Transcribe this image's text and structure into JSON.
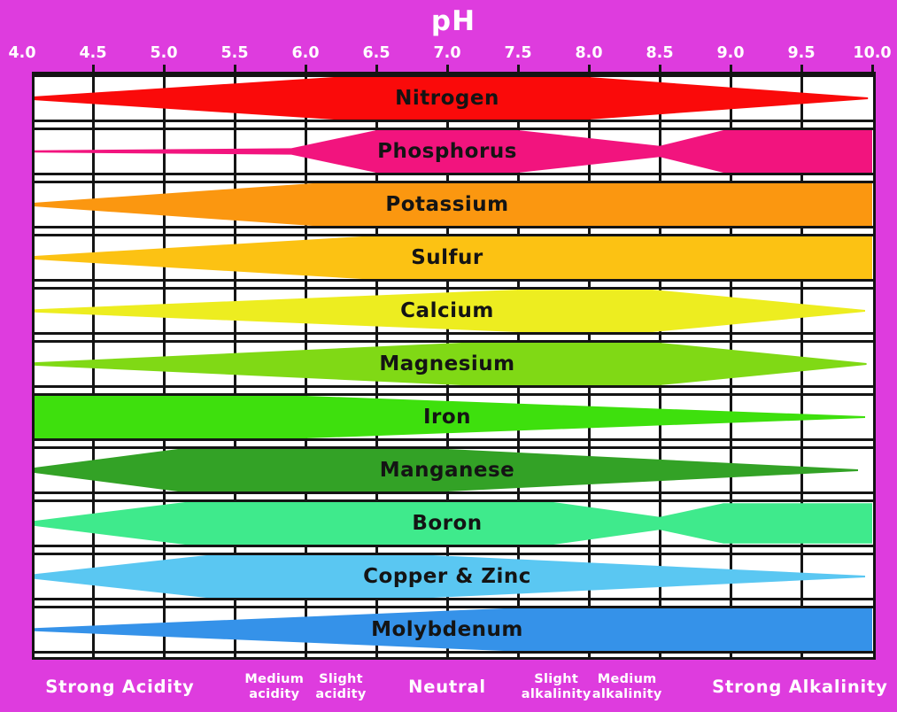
{
  "chart_data": {
    "type": "area",
    "title": "pH",
    "description": "Nutrient availability vs soil pH; ribbon thickness = relative availability (1 = full row height)",
    "x_axis": {
      "label": "pH",
      "min": 4.0,
      "max": 10.0,
      "tick_step": 0.5,
      "tick_labels": [
        "4.0",
        "4.5",
        "5.0",
        "5.5",
        "6.0",
        "6.5",
        "7.0",
        "7.5",
        "8.0",
        "8.5",
        "9.0",
        "9.5",
        "10.0"
      ]
    },
    "grid": "on",
    "bands": [
      {
        "name": "Nitrogen",
        "color": "#FA0A0A",
        "points": [
          [
            4.0,
            0.05
          ],
          [
            6.2,
            1
          ],
          [
            8.0,
            1
          ],
          [
            9.97,
            0.04
          ]
        ]
      },
      {
        "name": "Phosphorus",
        "color": "#F2147E",
        "points": [
          [
            4.0,
            0.05
          ],
          [
            5.9,
            0.15
          ],
          [
            6.5,
            1
          ],
          [
            7.5,
            1
          ],
          [
            8.5,
            0.26
          ],
          [
            8.95,
            1
          ],
          [
            10.0,
            1
          ]
        ]
      },
      {
        "name": "Potassium",
        "color": "#FB9710",
        "points": [
          [
            4.0,
            0.05
          ],
          [
            6.05,
            1
          ],
          [
            10.0,
            1
          ]
        ]
      },
      {
        "name": "Sulfur",
        "color": "#FCC213",
        "points": [
          [
            4.0,
            0.05
          ],
          [
            6.4,
            1
          ],
          [
            10.0,
            1
          ]
        ]
      },
      {
        "name": "Calcium",
        "color": "#EDED20",
        "points": [
          [
            4.0,
            0.05
          ],
          [
            7.5,
            1
          ],
          [
            8.45,
            1
          ],
          [
            9.95,
            0.04
          ]
        ]
      },
      {
        "name": "Magnesium",
        "color": "#80D915",
        "points": [
          [
            4.0,
            0.05
          ],
          [
            7.1,
            1
          ],
          [
            8.5,
            1
          ],
          [
            9.96,
            0.04
          ]
        ]
      },
      {
        "name": "Iron",
        "color": "#3EE00D",
        "points": [
          [
            4.0,
            1
          ],
          [
            6.0,
            1
          ],
          [
            9.95,
            0.04
          ]
        ]
      },
      {
        "name": "Manganese",
        "color": "#33A226",
        "points": [
          [
            4.0,
            0.05
          ],
          [
            5.1,
            1
          ],
          [
            7.0,
            1
          ],
          [
            9.9,
            0.04
          ]
        ]
      },
      {
        "name": "Boron",
        "color": "#3FEA8C",
        "points": [
          [
            4.0,
            0.05
          ],
          [
            5.15,
            1
          ],
          [
            7.75,
            1
          ],
          [
            8.5,
            0.3
          ],
          [
            8.95,
            0.95
          ],
          [
            10.0,
            0.95
          ]
        ]
      },
      {
        "name": "Copper & Zinc",
        "color": "#5AC7F2",
        "points": [
          [
            4.0,
            0.05
          ],
          [
            5.3,
            1
          ],
          [
            6.9,
            1
          ],
          [
            9.95,
            0.04
          ]
        ]
      },
      {
        "name": "Molybdenum",
        "color": "#3592E9",
        "points": [
          [
            4.0,
            0.05
          ],
          [
            7.4,
            1
          ],
          [
            10.0,
            1
          ]
        ]
      }
    ],
    "zones": [
      {
        "lines": [
          "Strong Acidity"
        ],
        "ph_center": 4.69,
        "size": "large"
      },
      {
        "lines": [
          "Medium",
          "acidity"
        ],
        "ph_center": 5.78,
        "size": "small"
      },
      {
        "lines": [
          "Slight",
          "acidity"
        ],
        "ph_center": 6.25,
        "size": "small"
      },
      {
        "lines": [
          "Neutral"
        ],
        "ph_center": 7.0,
        "size": "large"
      },
      {
        "lines": [
          "Slight",
          "alkalinity"
        ],
        "ph_center": 7.77,
        "size": "small"
      },
      {
        "lines": [
          "Medium",
          "alkalinity"
        ],
        "ph_center": 8.27,
        "size": "small"
      },
      {
        "lines": [
          "Strong Alkalinity"
        ],
        "ph_center": 9.49,
        "size": "large"
      }
    ],
    "colors": {
      "background": "#DE3CDE",
      "plot_background": "#FFFFFF",
      "grid": "#141414",
      "band_label_text": "#141414",
      "axis_text": "#FFFFFF"
    }
  }
}
